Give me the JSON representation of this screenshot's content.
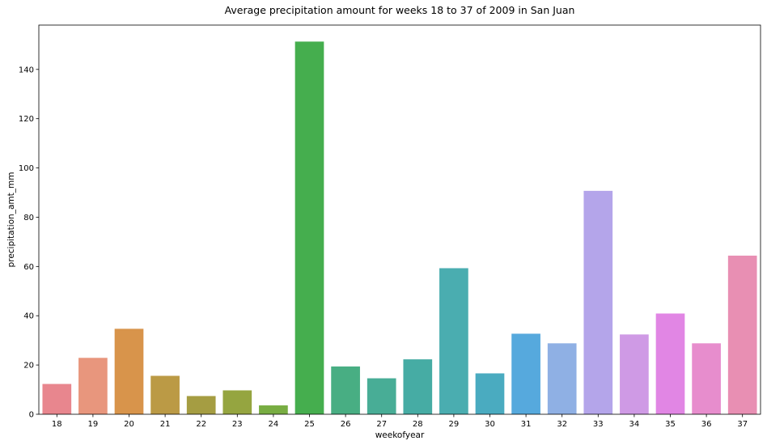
{
  "chart_data": {
    "type": "bar",
    "title": "Average precipitation amount for weeks 18 to 37 of 2009 in San Juan",
    "xlabel": "weekofyear",
    "ylabel": "precipitation_amt_mm",
    "categories": [
      "18",
      "19",
      "20",
      "21",
      "22",
      "23",
      "24",
      "25",
      "26",
      "27",
      "28",
      "29",
      "30",
      "31",
      "32",
      "33",
      "34",
      "35",
      "36",
      "37"
    ],
    "values": [
      12.3,
      22.9,
      34.7,
      15.6,
      7.4,
      9.7,
      3.6,
      151.3,
      19.4,
      14.6,
      22.3,
      59.3,
      16.6,
      32.7,
      28.8,
      90.7,
      32.4,
      40.9,
      28.8,
      64.4
    ],
    "colors": [
      "#e8868e",
      "#e8967d",
      "#d8944b",
      "#bb9a45",
      "#a59d42",
      "#95a540",
      "#78ad42",
      "#45ae4e",
      "#48ae83",
      "#48ad96",
      "#46aca4",
      "#4aadb0",
      "#4aabc0",
      "#56a9dd",
      "#8fb0e4",
      "#b4a5ea",
      "#cf9ae5",
      "#e186e4",
      "#e78dcd",
      "#e88fb3"
    ],
    "ylim": [
      0,
      158
    ],
    "yticks": [
      0,
      20,
      40,
      60,
      80,
      100,
      120,
      140
    ],
    "grid": false,
    "legend": "none"
  }
}
